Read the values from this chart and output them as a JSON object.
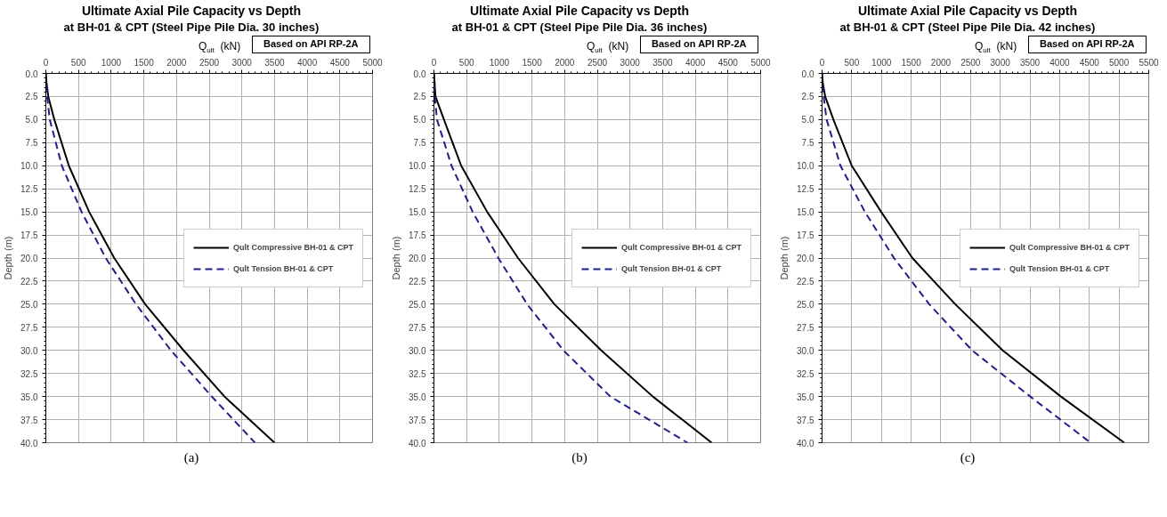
{
  "chart_data": [
    {
      "type": "line",
      "title": "Ultimate Axial Pile Capacity vs Depth",
      "subtitle": "at BH-01 & CPT (Steel Pipe Pile Dia. 30 inches)",
      "xlabel": "Q$_{ult}$  (kN)",
      "ylabel": "Depth (m)",
      "annotations": [
        "Based on API RP-2A",
        "(a)"
      ],
      "xlim": [
        0,
        5000
      ],
      "xticks": [
        0,
        500,
        1000,
        1500,
        2000,
        2500,
        3000,
        3500,
        4000,
        4500,
        5000
      ],
      "ylim": [
        40,
        0
      ],
      "yticks": [
        {
          "value": 0,
          "label": "0.0"
        },
        {
          "value": 2.5,
          "label": "2.5"
        },
        {
          "value": 5,
          "label": "5.0"
        },
        {
          "value": 7.5,
          "label": "7.5"
        },
        {
          "value": 10,
          "label": "10.0"
        },
        {
          "value": 12.5,
          "label": "12.5"
        },
        {
          "value": 15,
          "label": "15.0"
        },
        {
          "value": 17.5,
          "label": "17.5"
        },
        {
          "value": 20,
          "label": "20.0"
        },
        {
          "value": 22.5,
          "label": "22.5"
        },
        {
          "value": 25,
          "label": "25.0"
        },
        {
          "value": 27.5,
          "label": "27.5"
        },
        {
          "value": 30,
          "label": "30.0"
        },
        {
          "value": 32.5,
          "label": "32.5"
        },
        {
          "value": 35,
          "label": "35.0"
        },
        {
          "value": 37.5,
          "label": "37.5"
        },
        {
          "value": 40,
          "label": "40.0"
        }
      ],
      "grid": true,
      "legend": "right",
      "series": [
        {
          "name": "Qult Compressive BH-01 & CPT",
          "color": "#000000",
          "line_style": "solid",
          "x": [
            0,
            10,
            37,
            130,
            352,
            663,
            1047,
            1520,
            2108,
            2734,
            3500
          ],
          "values": [
            0,
            1,
            2.5,
            5,
            10,
            15,
            20,
            25,
            30,
            35,
            40
          ]
        },
        {
          "name": "Qult Tension BH-01 & CPT",
          "color": "#1f1f8a",
          "line_style": "dashed",
          "x": [
            0,
            5,
            20,
            60,
            245,
            547,
            917,
            1380,
            1914,
            2540,
            3200
          ],
          "values": [
            0,
            1,
            2.5,
            5,
            10,
            15,
            20,
            25,
            30,
            35,
            40
          ]
        }
      ]
    },
    {
      "type": "line",
      "title": "Ultimate Axial Pile Capacity vs Depth",
      "subtitle": "at BH-01 & CPT (Steel Pipe Pile Dia. 36 inches)",
      "xlabel": "Q$_{ult}$  (kN)",
      "ylabel": "Depth (m)",
      "annotations": [
        "Based on API RP-2A",
        "(b)"
      ],
      "xlim": [
        0,
        5000
      ],
      "xticks": [
        0,
        500,
        1000,
        1500,
        2000,
        2500,
        3000,
        3500,
        4000,
        4500,
        5000
      ],
      "ylim": [
        40,
        0
      ],
      "yticks": [
        {
          "value": 0,
          "label": "0.0"
        },
        {
          "value": 2.5,
          "label": "2.5"
        },
        {
          "value": 5,
          "label": "5.0"
        },
        {
          "value": 7.5,
          "label": "7.5"
        },
        {
          "value": 10,
          "label": "10.0"
        },
        {
          "value": 12.5,
          "label": "12.5"
        },
        {
          "value": 15,
          "label": "15.0"
        },
        {
          "value": 17.5,
          "label": "17.5"
        },
        {
          "value": 20,
          "label": "20.0"
        },
        {
          "value": 22.5,
          "label": "22.5"
        },
        {
          "value": 25,
          "label": "25.0"
        },
        {
          "value": 27.5,
          "label": "27.5"
        },
        {
          "value": 30,
          "label": "30.0"
        },
        {
          "value": 32.5,
          "label": "32.5"
        },
        {
          "value": 35,
          "label": "35.0"
        },
        {
          "value": 37.5,
          "label": "37.5"
        },
        {
          "value": 40,
          "label": "40.0"
        }
      ],
      "grid": true,
      "legend": "right",
      "series": [
        {
          "name": "Qult Compressive BH-01 & CPT",
          "color": "#000000",
          "line_style": "solid",
          "x": [
            0,
            10,
            23,
            153,
            417,
            815,
            1287,
            1843,
            2560,
            3350,
            4250
          ],
          "values": [
            0,
            1,
            2.5,
            5,
            10,
            15,
            20,
            25,
            30,
            35,
            40
          ]
        },
        {
          "name": "Qult Tension BH-01 & CPT",
          "color": "#1f1f8a",
          "line_style": "dashed",
          "x": [
            0,
            5,
            12,
            46,
            269,
            593,
            986,
            1426,
            1981,
            2700,
            3880
          ],
          "values": [
            0,
            1,
            2.5,
            5,
            10,
            15,
            20,
            25,
            30,
            35,
            40
          ]
        }
      ]
    },
    {
      "type": "line",
      "title": "Ultimate Axial Pile Capacity vs Depth",
      "subtitle": "at BH-01 & CPT (Steel Pipe Pile Dia. 42 inches)",
      "xlabel": "Q$_{ult}$  (kN)",
      "ylabel": "Depth (m)",
      "annotations": [
        "Based on API RP-2A",
        "(c)"
      ],
      "xlim": [
        0,
        5500
      ],
      "xticks": [
        0,
        500,
        1000,
        1500,
        2000,
        2500,
        3000,
        3500,
        4000,
        4500,
        5000,
        5500
      ],
      "ylim": [
        40,
        0
      ],
      "yticks": [
        {
          "value": 0,
          "label": "0.0"
        },
        {
          "value": 2.5,
          "label": "2.5"
        },
        {
          "value": 5,
          "label": "5.0"
        },
        {
          "value": 7.5,
          "label": "7.5"
        },
        {
          "value": 10,
          "label": "10.0"
        },
        {
          "value": 12.5,
          "label": "12.5"
        },
        {
          "value": 15,
          "label": "15.0"
        },
        {
          "value": 17.5,
          "label": "17.5"
        },
        {
          "value": 20,
          "label": "20.0"
        },
        {
          "value": 22.5,
          "label": "22.5"
        },
        {
          "value": 25,
          "label": "25.0"
        },
        {
          "value": 27.5,
          "label": "27.5"
        },
        {
          "value": 30,
          "label": "30.0"
        },
        {
          "value": 32.5,
          "label": "32.5"
        },
        {
          "value": 35,
          "label": "35.0"
        },
        {
          "value": 37.5,
          "label": "37.5"
        },
        {
          "value": 40,
          "label": "40.0"
        }
      ],
      "grid": true,
      "legend": "right",
      "series": [
        {
          "name": "Qult Compressive BH-01 & CPT",
          "color": "#000000",
          "line_style": "solid",
          "x": [
            0,
            12,
            52,
            191,
            500,
            995,
            1521,
            2242,
            3041,
            4021,
            5088
          ],
          "values": [
            0,
            1,
            2.5,
            5,
            10,
            15,
            20,
            25,
            30,
            35,
            40
          ]
        },
        {
          "name": "Qult Tension BH-01 & CPT",
          "color": "#1f1f8a",
          "line_style": "dashed",
          "x": [
            0,
            6,
            26,
            77,
            309,
            722,
            1211,
            1804,
            2526,
            3505,
            4521
          ],
          "values": [
            0,
            1,
            2.5,
            5,
            10,
            15,
            20,
            25,
            30,
            35,
            40
          ]
        }
      ]
    }
  ]
}
